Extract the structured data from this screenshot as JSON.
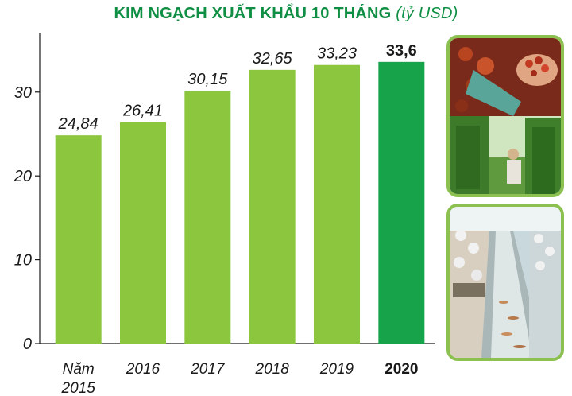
{
  "header": {
    "title": "KIM NGẠCH XUẤT KHẨU 10 THÁNG",
    "unit": "(tỷ USD)"
  },
  "chart_data": {
    "type": "bar",
    "title": "KIM NGẠCH XUẤT KHẨU 10 THÁNG",
    "unit": "(tỷ USD)",
    "categories": [
      "Năm 2015",
      "2016",
      "2017",
      "2018",
      "2019",
      "2020"
    ],
    "values": [
      24.84,
      26.41,
      30.15,
      32.65,
      33.23,
      33.6
    ],
    "value_labels": [
      "24,84",
      "26,41",
      "30,15",
      "32,65",
      "33,23",
      "33,6"
    ],
    "yticks": [
      0,
      10,
      20,
      30
    ],
    "ylim": [
      0,
      37
    ],
    "grid": false,
    "highlight_index": 5,
    "colors": {
      "bar": "#8cc63f",
      "highlight": "#17a34a",
      "title": "#0f8f43"
    }
  },
  "photos": [
    {
      "name": "pepper-harvest-photo"
    },
    {
      "name": "shrimp-processing-photo"
    }
  ]
}
